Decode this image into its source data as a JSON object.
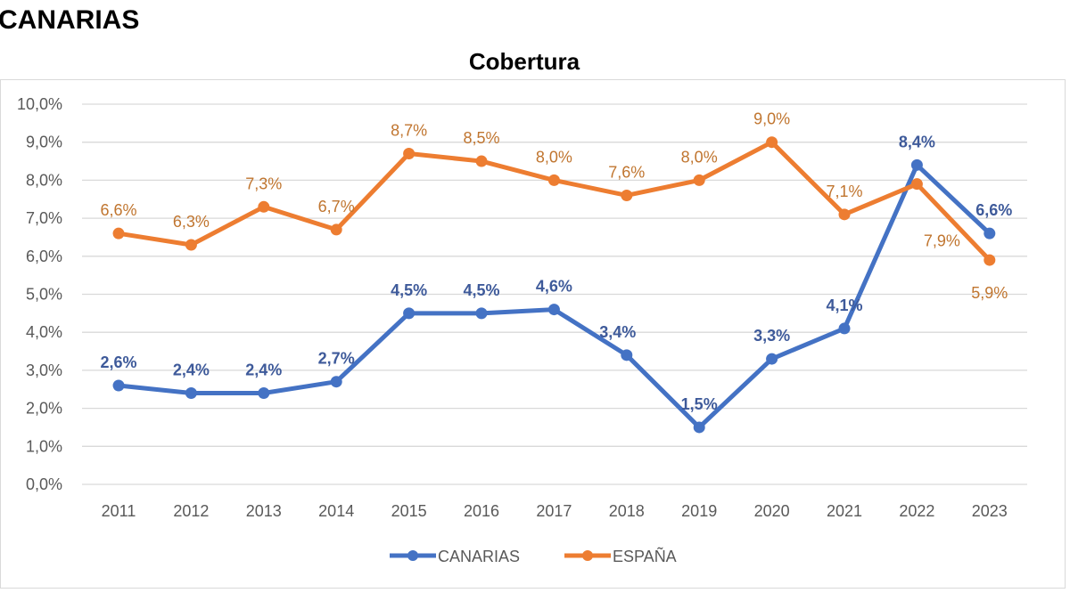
{
  "heading": "CANARIAS",
  "chart_data": {
    "type": "line",
    "title": "Cobertura",
    "categories": [
      "2011",
      "2012",
      "2013",
      "2014",
      "2015",
      "2016",
      "2017",
      "2018",
      "2019",
      "2020",
      "2021",
      "2022",
      "2023"
    ],
    "y_ticks": [
      "0,0%",
      "1,0%",
      "2,0%",
      "3,0%",
      "4,0%",
      "5,0%",
      "6,0%",
      "7,0%",
      "8,0%",
      "9,0%",
      "10,0%"
    ],
    "ylim": [
      0,
      10
    ],
    "yunit": "%",
    "grid": true,
    "legend_position": "bottom",
    "series": [
      {
        "name": "CANARIAS",
        "color": "#4472c4",
        "values": [
          2.6,
          2.4,
          2.4,
          2.7,
          4.5,
          4.5,
          4.6,
          3.4,
          1.5,
          3.3,
          4.1,
          8.4,
          6.6
        ],
        "labels": [
          "2,6%",
          "2,4%",
          "2,4%",
          "2,7%",
          "4,5%",
          "4,5%",
          "4,6%",
          "3,4%",
          "1,5%",
          "3,3%",
          "4,1%",
          "8,4%",
          "6,6%"
        ]
      },
      {
        "name": "ESPAÑA",
        "color": "#ed7d31",
        "values": [
          6.6,
          6.3,
          7.3,
          6.7,
          8.7,
          8.5,
          8.0,
          7.6,
          8.0,
          9.0,
          7.1,
          7.9,
          5.9
        ],
        "labels": [
          "6,6%",
          "6,3%",
          "7,3%",
          "6,7%",
          "8,7%",
          "8,5%",
          "8,0%",
          "7,6%",
          "8,0%",
          "9,0%",
          "7,1%",
          "7,9%",
          "5,9%"
        ]
      }
    ]
  }
}
